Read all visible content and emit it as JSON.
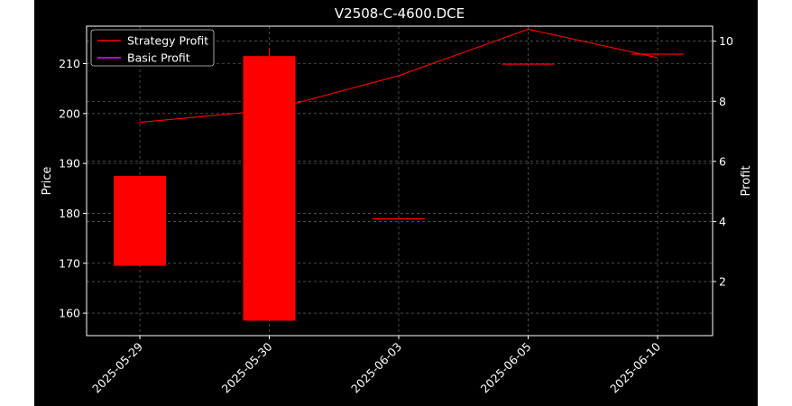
{
  "chart_data": {
    "type": "candlestick+line",
    "title": "V2508-C-4600.DCE",
    "x_categories": [
      "2025-05-29",
      "2025-05-30",
      "2025-06-03",
      "2025-06-05",
      "2025-06-10"
    ],
    "left_axis": {
      "label": "Price",
      "range": [
        155.5,
        217.5
      ],
      "ticks": [
        160,
        170,
        180,
        190,
        200,
        210
      ]
    },
    "right_axis": {
      "label": "Profit",
      "range": [
        0.2,
        10.5
      ],
      "ticks": [
        2,
        4,
        6,
        8,
        10
      ]
    },
    "candles": [
      {
        "x": "2025-05-29",
        "open": 169.5,
        "close": 187.5,
        "high": 187.5,
        "low": 169.5
      },
      {
        "x": "2025-05-30",
        "open": 211.5,
        "close": 158.5,
        "high": 213.2,
        "low": 158.5
      },
      {
        "x": "2025-06-03",
        "open": 179.0,
        "close": 179.0,
        "high": 179.0,
        "low": 179.0
      },
      {
        "x": "2025-06-05",
        "open": 210.0,
        "close": 210.0,
        "high": 210.0,
        "low": 210.0
      },
      {
        "x": "2025-06-10",
        "open": 212.0,
        "close": 212.0,
        "high": 212.0,
        "low": 212.0
      }
    ],
    "series": [
      {
        "name": "Strategy Profit",
        "color": "#ff0000",
        "values": [
          7.3,
          7.7,
          8.85,
          10.4,
          9.45
        ]
      },
      {
        "name": "Basic Profit",
        "color": "#ff00ff",
        "values": [
          0.2,
          0.2,
          0.2,
          0.2,
          0.2
        ]
      }
    ],
    "grid": true,
    "legend_position": "top-left",
    "candle_color": "#ff0000"
  }
}
